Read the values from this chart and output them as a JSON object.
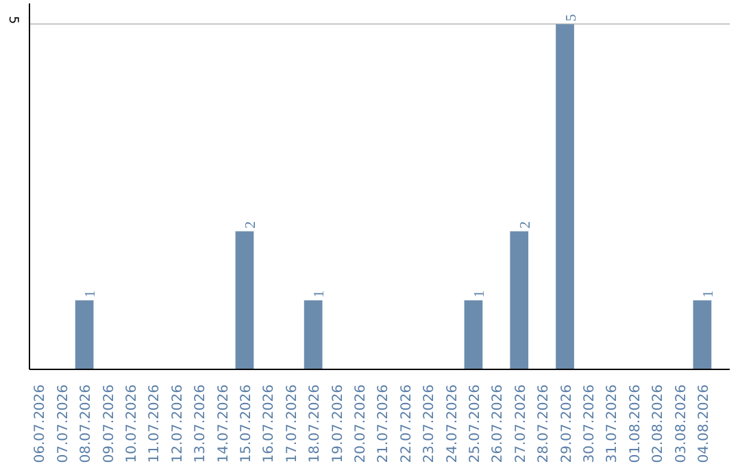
{
  "chart_data": {
    "type": "bar",
    "categories": [
      "06.07.2026",
      "07.07.2026",
      "08.07.2026",
      "09.07.2026",
      "10.07.2026",
      "11.07.2026",
      "12.07.2026",
      "13.07.2026",
      "14.07.2026",
      "15.07.2026",
      "16.07.2026",
      "17.07.2026",
      "18.07.2026",
      "19.07.2026",
      "20.07.2026",
      "21.07.2026",
      "22.07.2026",
      "23.07.2026",
      "24.07.2026",
      "25.07.2026",
      "26.07.2026",
      "27.07.2026",
      "28.07.2026",
      "29.07.2026",
      "30.07.2026",
      "31.07.2026",
      "01.08.2026",
      "02.08.2026",
      "03.08.2026",
      "04.08.2026"
    ],
    "values": [
      0,
      0,
      1,
      0,
      0,
      0,
      0,
      0,
      0,
      2,
      0,
      0,
      1,
      0,
      0,
      0,
      0,
      0,
      0,
      1,
      0,
      2,
      0,
      5,
      0,
      0,
      0,
      0,
      0,
      1
    ],
    "value_labels": [
      null,
      null,
      "1",
      null,
      null,
      null,
      null,
      null,
      null,
      "2",
      null,
      null,
      "1",
      null,
      null,
      null,
      null,
      null,
      null,
      "1",
      null,
      "2",
      null,
      "5",
      null,
      null,
      null,
      null,
      null,
      "1"
    ],
    "color": "#6b8cad",
    "ylim": [
      0,
      5.3
    ],
    "yticks": [
      5
    ],
    "grid": "y"
  }
}
